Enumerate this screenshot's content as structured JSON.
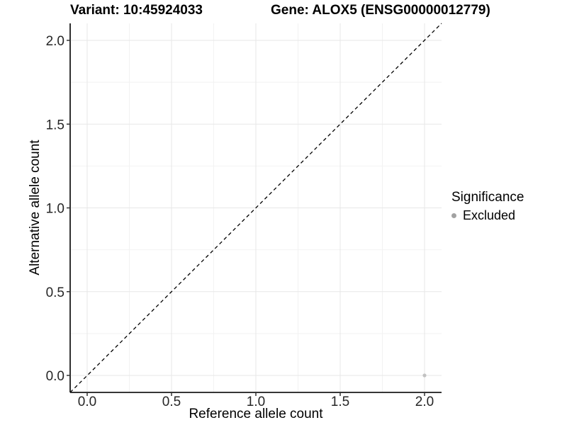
{
  "chart_data": {
    "type": "scatter",
    "title_left": "Variant: 10:45924033",
    "title_right": "Gene: ALOX5 (ENSG00000012779)",
    "xlabel": "Reference allele count",
    "ylabel": "Alternative allele count",
    "xlim": [
      -0.1,
      2.1
    ],
    "ylim": [
      -0.1,
      2.1
    ],
    "x_ticks": {
      "values": [
        0,
        0.5,
        1,
        1.5,
        2
      ],
      "labels": [
        "0.0",
        "0.5",
        "1.0",
        "1.5",
        "2.0"
      ]
    },
    "y_ticks": {
      "values": [
        0,
        0.5,
        1,
        1.5,
        2
      ],
      "labels": [
        "0.0",
        "0.5",
        "1.0",
        "1.5",
        "2.0"
      ]
    },
    "grid": {
      "major": [
        0,
        0.5,
        1,
        1.5,
        2
      ],
      "minor": [
        0.25,
        0.75,
        1.25,
        1.75
      ]
    },
    "reference_line": {
      "type": "identity",
      "slope": 1,
      "intercept": 0,
      "style": "dashed",
      "color": "#000000"
    },
    "series": [
      {
        "name": "Excluded",
        "points": [
          {
            "x": 2.0,
            "y": 0.0
          }
        ],
        "color": "#c2c2c2"
      }
    ],
    "legend": {
      "title": "Significance",
      "position": "right",
      "entries": [
        {
          "label": "Excluded",
          "color": "#a2a2a2"
        }
      ]
    },
    "colors": {
      "background": "#ffffff",
      "panel_background": "#ffffff",
      "grid_major": "#e7e7e7",
      "grid_minor": "#f2f2f2",
      "axis_line": "#1a1a1a",
      "tick_mark": "#333333",
      "tick_label": "#262626",
      "title_text": "#000000"
    }
  }
}
